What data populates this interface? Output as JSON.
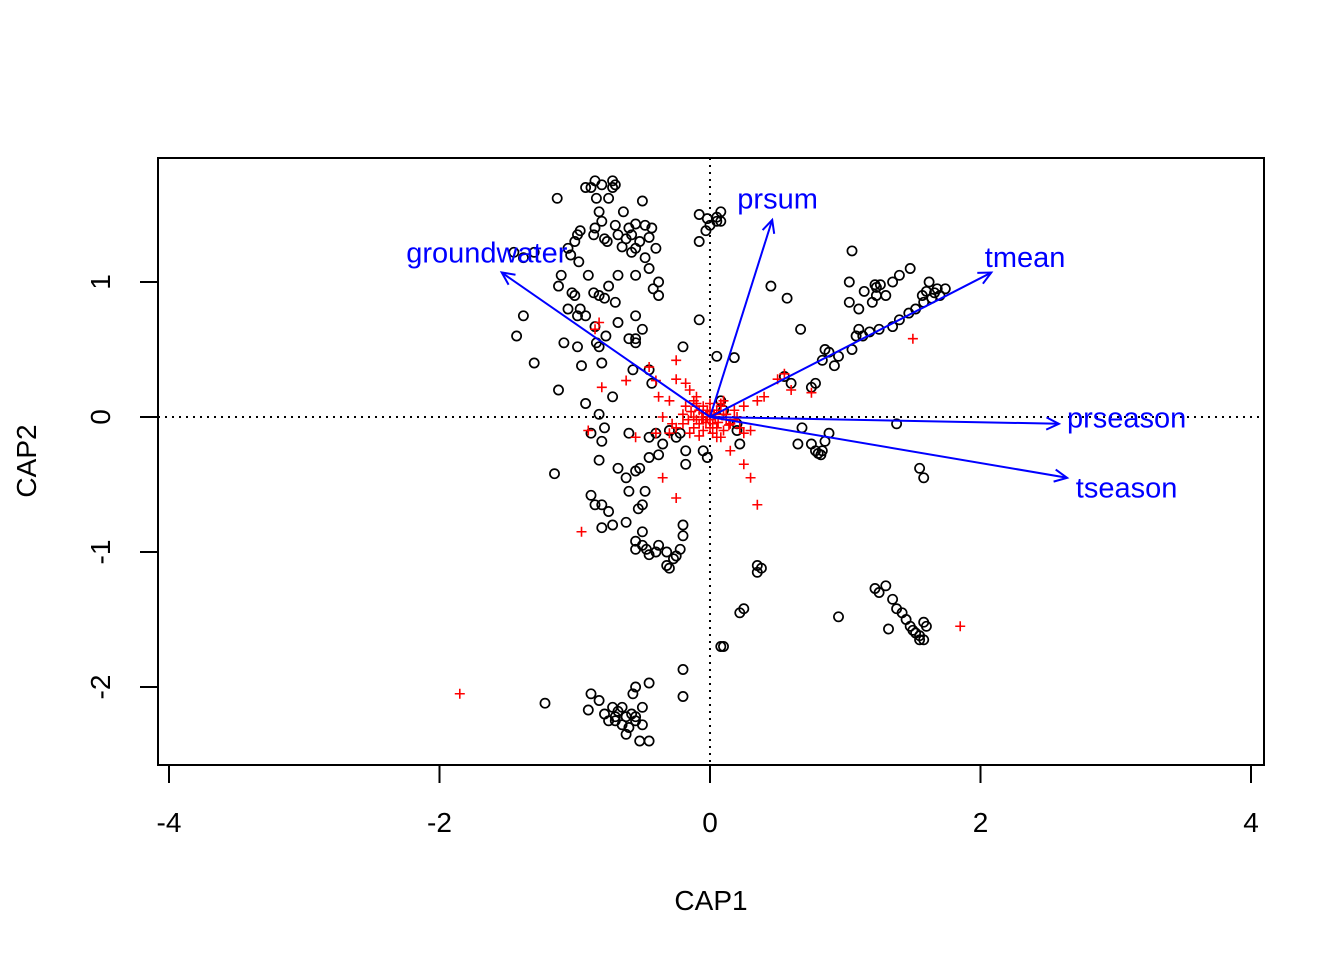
{
  "chart_data": {
    "type": "scatter",
    "title": "",
    "xlabel": "CAP1",
    "ylabel": "CAP2",
    "xlim": [
      -4.1,
      4.05
    ],
    "ylim": [
      -2.58,
      1.93
    ],
    "x_ticks": [
      -4,
      -2,
      0,
      2,
      4
    ],
    "y_ticks": [
      -2,
      -1,
      0,
      1
    ],
    "x_tick_labels": [
      "-4",
      "-2",
      "0",
      "2",
      "4"
    ],
    "y_tick_labels": [
      "-2",
      "-1",
      "0",
      "1"
    ],
    "reference_lines": {
      "x": 0,
      "y": 0,
      "style": "dotted"
    },
    "colors": {
      "sites": "#000000",
      "species": "#ff0000",
      "vectors": "#0000ff"
    },
    "vectors": [
      {
        "label": "groundwater",
        "x": -1.54,
        "y": 1.07,
        "label_x": -1.65,
        "label_y": 1.2
      },
      {
        "label": "prsum",
        "x": 0.46,
        "y": 1.46,
        "label_x": 0.5,
        "label_y": 1.6
      },
      {
        "label": "tmean",
        "x": 2.08,
        "y": 1.07,
        "label_x": 2.33,
        "label_y": 1.17
      },
      {
        "label": "prseason",
        "x": 2.58,
        "y": -0.05,
        "label_x": 3.08,
        "label_y": -0.02
      },
      {
        "label": "tseason",
        "x": 2.64,
        "y": -0.45,
        "label_x": 3.08,
        "label_y": -0.54
      }
    ],
    "sites": [
      [
        -0.85,
        1.75
      ],
      [
        -0.8,
        1.72
      ],
      [
        -0.72,
        1.75
      ],
      [
        -0.7,
        1.72
      ],
      [
        -0.88,
        1.7
      ],
      [
        -0.92,
        1.7
      ],
      [
        -0.72,
        1.7
      ],
      [
        -0.84,
        1.62
      ],
      [
        -0.75,
        1.62
      ],
      [
        -1.13,
        1.62
      ],
      [
        -0.5,
        1.6
      ],
      [
        -0.64,
        1.52
      ],
      [
        -0.82,
        1.52
      ],
      [
        -0.8,
        1.45
      ],
      [
        -0.7,
        1.42
      ],
      [
        -0.6,
        1.4
      ],
      [
        -0.55,
        1.43
      ],
      [
        -0.48,
        1.42
      ],
      [
        -0.43,
        1.4
      ],
      [
        -0.58,
        1.35
      ],
      [
        -0.62,
        1.32
      ],
      [
        -0.52,
        1.3
      ],
      [
        -0.45,
        1.33
      ],
      [
        -0.85,
        1.4
      ],
      [
        -0.86,
        1.35
      ],
      [
        -0.78,
        1.32
      ],
      [
        -0.76,
        1.3
      ],
      [
        -0.68,
        1.35
      ],
      [
        -0.65,
        1.26
      ],
      [
        -0.55,
        1.25
      ],
      [
        -0.4,
        1.25
      ],
      [
        -0.48,
        1.18
      ],
      [
        -0.58,
        1.22
      ],
      [
        -0.96,
        1.38
      ],
      [
        -0.98,
        1.35
      ],
      [
        -1.0,
        1.3
      ],
      [
        -1.05,
        1.25
      ],
      [
        -1.03,
        1.2
      ],
      [
        -0.97,
        1.15
      ],
      [
        -1.1,
        1.05
      ],
      [
        -0.9,
        1.05
      ],
      [
        -0.86,
        0.92
      ],
      [
        -0.82,
        0.9
      ],
      [
        -0.78,
        0.88
      ],
      [
        -0.7,
        0.85
      ],
      [
        -0.92,
        0.75
      ],
      [
        -0.96,
        0.8
      ],
      [
        -0.98,
        0.75
      ],
      [
        -1.05,
        0.8
      ],
      [
        -0.45,
        1.1
      ],
      [
        -0.38,
        1.0
      ],
      [
        -0.42,
        0.95
      ],
      [
        -0.38,
        0.9
      ],
      [
        -0.55,
        1.05
      ],
      [
        -0.68,
        1.05
      ],
      [
        -0.75,
        0.97
      ],
      [
        -1.0,
        0.9
      ],
      [
        -1.02,
        0.92
      ],
      [
        -1.12,
        0.97
      ],
      [
        -1.3,
        1.22
      ],
      [
        -1.45,
        1.22
      ],
      [
        -1.38,
        1.18
      ],
      [
        -1.38,
        0.75
      ],
      [
        -1.43,
        0.6
      ],
      [
        -1.3,
        0.4
      ],
      [
        -1.08,
        0.55
      ],
      [
        -0.98,
        0.52
      ],
      [
        -0.84,
        0.55
      ],
      [
        -0.82,
        0.52
      ],
      [
        -0.8,
        0.4
      ],
      [
        -0.77,
        0.6
      ],
      [
        -0.6,
        0.58
      ],
      [
        -0.55,
        0.58
      ],
      [
        -0.55,
        0.55
      ],
      [
        -0.5,
        0.65
      ],
      [
        -0.55,
        0.75
      ],
      [
        -0.68,
        0.7
      ],
      [
        -0.85,
        0.67
      ],
      [
        -0.95,
        0.38
      ],
      [
        -0.45,
        0.35
      ],
      [
        -0.57,
        0.35
      ],
      [
        -0.43,
        0.25
      ],
      [
        -0.2,
        0.52
      ],
      [
        -0.08,
        1.5
      ],
      [
        -0.02,
        1.47
      ],
      [
        0.05,
        1.48
      ],
      [
        0.08,
        1.45
      ],
      [
        0.05,
        1.45
      ],
      [
        0.08,
        1.52
      ],
      [
        0.0,
        1.42
      ],
      [
        -0.03,
        1.38
      ],
      [
        -0.08,
        1.3
      ],
      [
        -0.08,
        0.72
      ],
      [
        0.05,
        0.45
      ],
      [
        0.18,
        0.44
      ],
      [
        0.08,
        0.12
      ],
      [
        0.1,
        0.05
      ],
      [
        0.45,
        0.97
      ],
      [
        0.57,
        0.88
      ],
      [
        0.67,
        0.65
      ],
      [
        1.05,
        1.23
      ],
      [
        1.03,
        1.0
      ],
      [
        1.14,
        0.93
      ],
      [
        1.03,
        0.85
      ],
      [
        1.1,
        0.8
      ],
      [
        1.2,
        0.85
      ],
      [
        1.23,
        0.9
      ],
      [
        1.23,
        0.96
      ],
      [
        1.22,
        0.98
      ],
      [
        1.26,
        0.98
      ],
      [
        1.3,
        0.9
      ],
      [
        1.35,
        1.0
      ],
      [
        1.4,
        1.05
      ],
      [
        1.48,
        1.1
      ],
      [
        1.57,
        0.9
      ],
      [
        1.6,
        0.93
      ],
      [
        1.62,
        1.0
      ],
      [
        1.64,
        0.88
      ],
      [
        1.66,
        0.92
      ],
      [
        1.68,
        0.95
      ],
      [
        1.7,
        0.9
      ],
      [
        1.74,
        0.95
      ],
      [
        1.58,
        0.85
      ],
      [
        1.52,
        0.8
      ],
      [
        1.47,
        0.77
      ],
      [
        1.4,
        0.72
      ],
      [
        1.35,
        0.67
      ],
      [
        1.25,
        0.65
      ],
      [
        1.18,
        0.63
      ],
      [
        1.13,
        0.6
      ],
      [
        1.1,
        0.65
      ],
      [
        1.08,
        0.6
      ],
      [
        1.05,
        0.5
      ],
      [
        0.95,
        0.45
      ],
      [
        0.92,
        0.38
      ],
      [
        0.88,
        0.48
      ],
      [
        0.85,
        0.5
      ],
      [
        0.83,
        0.42
      ],
      [
        0.78,
        0.25
      ],
      [
        0.75,
        0.22
      ],
      [
        0.6,
        0.25
      ],
      [
        0.55,
        0.3
      ],
      [
        0.68,
        -0.08
      ],
      [
        0.75,
        -0.2
      ],
      [
        0.83,
        -0.25
      ],
      [
        0.82,
        -0.28
      ],
      [
        0.8,
        -0.27
      ],
      [
        0.78,
        -0.25
      ],
      [
        0.85,
        -0.18
      ],
      [
        0.65,
        -0.2
      ],
      [
        0.88,
        -0.12
      ],
      [
        1.38,
        -0.05
      ],
      [
        1.55,
        -0.38
      ],
      [
        1.58,
        -0.45
      ],
      [
        1.22,
        -1.27
      ],
      [
        1.25,
        -1.3
      ],
      [
        1.3,
        -1.25
      ],
      [
        1.35,
        -1.35
      ],
      [
        1.38,
        -1.42
      ],
      [
        1.42,
        -1.45
      ],
      [
        1.45,
        -1.5
      ],
      [
        1.48,
        -1.55
      ],
      [
        1.5,
        -1.58
      ],
      [
        1.52,
        -1.6
      ],
      [
        1.55,
        -1.62
      ],
      [
        1.58,
        -1.65
      ],
      [
        1.6,
        -1.55
      ],
      [
        1.55,
        -1.65
      ],
      [
        1.32,
        -1.57
      ],
      [
        1.58,
        -1.52
      ],
      [
        0.95,
        -1.48
      ],
      [
        -0.05,
        -0.25
      ],
      [
        -0.02,
        -0.3
      ],
      [
        0.2,
        -0.05
      ],
      [
        0.2,
        -0.1
      ],
      [
        0.22,
        -0.2
      ],
      [
        0.35,
        -1.1
      ],
      [
        0.38,
        -1.12
      ],
      [
        0.35,
        -1.15
      ],
      [
        0.25,
        -1.42
      ],
      [
        0.22,
        -1.45
      ],
      [
        0.08,
        -1.7
      ],
      [
        0.1,
        -1.7
      ],
      [
        -0.2,
        -1.87
      ],
      [
        -0.2,
        -2.07
      ],
      [
        -0.55,
        -2.0
      ],
      [
        -0.45,
        -1.97
      ],
      [
        -0.57,
        -2.05
      ],
      [
        -1.22,
        -2.12
      ],
      [
        -0.9,
        -2.17
      ],
      [
        -0.88,
        -2.05
      ],
      [
        -0.82,
        -2.1
      ],
      [
        -0.78,
        -2.2
      ],
      [
        -0.7,
        -2.25
      ],
      [
        -0.65,
        -2.28
      ],
      [
        -0.6,
        -2.3
      ],
      [
        -0.55,
        -2.22
      ],
      [
        -0.62,
        -2.35
      ],
      [
        -0.52,
        -2.4
      ],
      [
        -0.45,
        -2.4
      ],
      [
        -0.72,
        -2.15
      ],
      [
        -0.68,
        -2.18
      ],
      [
        -0.5,
        -2.15
      ],
      [
        -0.58,
        -2.2
      ],
      [
        -0.65,
        -2.15
      ],
      [
        -0.75,
        -2.25
      ],
      [
        -0.62,
        -2.22
      ],
      [
        -0.55,
        -2.25
      ],
      [
        -0.5,
        -2.28
      ],
      [
        -0.7,
        -2.22
      ],
      [
        -0.55,
        -0.92
      ],
      [
        -0.5,
        -0.95
      ],
      [
        -0.47,
        -0.98
      ],
      [
        -0.45,
        -1.02
      ],
      [
        -0.4,
        -1.0
      ],
      [
        -0.38,
        -0.95
      ],
      [
        -0.32,
        -1.0
      ],
      [
        -0.27,
        -1.05
      ],
      [
        -0.25,
        -1.03
      ],
      [
        -0.22,
        -0.98
      ],
      [
        -0.2,
        -0.88
      ],
      [
        -0.2,
        -0.8
      ],
      [
        -0.3,
        -1.12
      ],
      [
        -0.32,
        -1.1
      ],
      [
        -0.55,
        -0.98
      ],
      [
        -0.5,
        -0.85
      ],
      [
        -0.53,
        -0.68
      ],
      [
        -0.6,
        -0.55
      ],
      [
        -0.52,
        -0.38
      ],
      [
        -0.45,
        -0.3
      ],
      [
        -0.38,
        -0.28
      ],
      [
        -0.35,
        -0.2
      ],
      [
        -0.3,
        -0.1
      ],
      [
        -0.25,
        -0.15
      ],
      [
        -0.22,
        -0.12
      ],
      [
        -0.18,
        -0.25
      ],
      [
        -0.18,
        -0.35
      ],
      [
        -0.4,
        -0.12
      ],
      [
        -0.45,
        -0.15
      ],
      [
        -0.6,
        -0.12
      ],
      [
        -0.48,
        -0.55
      ],
      [
        -0.5,
        -0.65
      ],
      [
        -0.55,
        -0.4
      ],
      [
        -0.62,
        -0.45
      ],
      [
        -0.68,
        -0.38
      ],
      [
        -0.62,
        -0.78
      ],
      [
        -0.72,
        -0.8
      ],
      [
        -0.8,
        -0.65
      ],
      [
        -0.75,
        -0.7
      ],
      [
        -0.8,
        -0.82
      ],
      [
        -0.85,
        -0.65
      ],
      [
        -0.88,
        -0.58
      ],
      [
        -0.82,
        -0.32
      ],
      [
        -0.88,
        -0.12
      ],
      [
        -0.78,
        -0.08
      ],
      [
        -0.72,
        0.15
      ],
      [
        -0.82,
        0.02
      ],
      [
        -0.92,
        0.1
      ],
      [
        -1.12,
        0.2
      ],
      [
        -1.15,
        -0.42
      ],
      [
        -0.8,
        -0.18
      ]
    ],
    "species": [
      [
        -0.82,
        0.7
      ],
      [
        -0.85,
        0.65
      ],
      [
        -0.8,
        0.22
      ],
      [
        -0.62,
        0.27
      ],
      [
        -0.45,
        0.37
      ],
      [
        -0.4,
        0.27
      ],
      [
        -0.38,
        0.15
      ],
      [
        -0.3,
        0.12
      ],
      [
        -0.25,
        0.28
      ],
      [
        -0.25,
        0.42
      ],
      [
        -0.18,
        0.25
      ],
      [
        -0.15,
        0.2
      ],
      [
        -0.12,
        0.12
      ],
      [
        -0.1,
        0.08
      ],
      [
        -0.08,
        0.05
      ],
      [
        -0.05,
        0.03
      ],
      [
        -0.02,
        0.0
      ],
      [
        0.0,
        -0.02
      ],
      [
        0.02,
        -0.05
      ],
      [
        0.05,
        0.05
      ],
      [
        0.08,
        0.08
      ],
      [
        0.1,
        0.02
      ],
      [
        0.12,
        -0.02
      ],
      [
        0.15,
        -0.05
      ],
      [
        0.18,
        0.05
      ],
      [
        0.22,
        -0.08
      ],
      [
        0.25,
        -0.12
      ],
      [
        0.3,
        -0.1
      ],
      [
        0.35,
        0.12
      ],
      [
        0.25,
        0.08
      ],
      [
        0.4,
        0.15
      ],
      [
        0.5,
        0.28
      ],
      [
        0.55,
        0.32
      ],
      [
        0.6,
        0.2
      ],
      [
        0.75,
        0.18
      ],
      [
        -0.2,
        -0.05
      ],
      [
        -0.15,
        -0.12
      ],
      [
        -0.12,
        -0.08
      ],
      [
        -0.08,
        -0.05
      ],
      [
        -0.05,
        -0.1
      ],
      [
        0.02,
        -0.12
      ],
      [
        0.05,
        -0.15
      ],
      [
        -0.3,
        -0.12
      ],
      [
        -0.35,
        0.0
      ],
      [
        -0.28,
        -0.05
      ],
      [
        -0.18,
        0.08
      ],
      [
        -0.1,
        0.15
      ],
      [
        0.0,
        0.1
      ],
      [
        0.1,
        0.12
      ],
      [
        -0.4,
        -0.12
      ],
      [
        -0.55,
        -0.15
      ],
      [
        -0.9,
        -0.1
      ],
      [
        -0.35,
        -0.45
      ],
      [
        -0.25,
        -0.6
      ],
      [
        0.08,
        -0.15
      ],
      [
        0.25,
        -0.35
      ],
      [
        0.3,
        -0.45
      ],
      [
        0.35,
        -0.65
      ],
      [
        0.15,
        -0.25
      ],
      [
        -0.95,
        -0.85
      ],
      [
        1.5,
        0.58
      ],
      [
        1.85,
        -1.55
      ],
      [
        -1.85,
        -2.05
      ],
      [
        -0.05,
        -0.02
      ],
      [
        0.03,
        0.02
      ],
      [
        -0.02,
        0.05
      ],
      [
        0.06,
        -0.04
      ],
      [
        -0.06,
        0.0
      ],
      [
        0.0,
        0.04
      ],
      [
        -0.03,
        -0.04
      ],
      [
        0.04,
        0.0
      ],
      [
        -0.1,
        -0.02
      ],
      [
        0.12,
        0.02
      ],
      [
        -0.14,
        0.04
      ],
      [
        0.14,
        -0.06
      ],
      [
        -0.08,
        -0.14
      ],
      [
        0.08,
        0.1
      ],
      [
        -0.2,
        0.02
      ],
      [
        0.2,
        0.0
      ],
      [
        -0.25,
        -0.08
      ],
      [
        -0.12,
        0.0
      ],
      [
        0.0,
        -0.08
      ],
      [
        0.0,
        0.02
      ],
      [
        0.05,
        -0.08
      ],
      [
        -0.05,
        0.08
      ],
      [
        0.18,
        -0.02
      ],
      [
        -0.16,
        -0.02
      ],
      [
        0.1,
        -0.1
      ],
      [
        -0.1,
        0.1
      ]
    ]
  }
}
